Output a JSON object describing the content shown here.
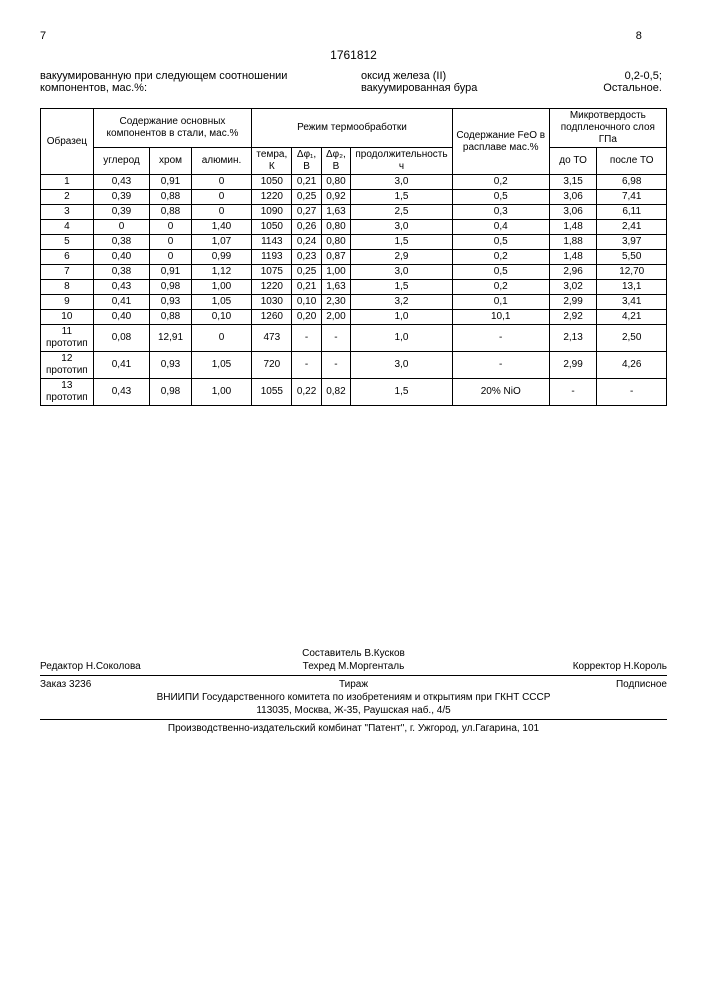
{
  "header": {
    "page_left": "7",
    "doc_number": "1761812",
    "page_right": "8",
    "left_text": "вакуумированную при следующем соотношении компонентов, мас.%:",
    "right_lines": [
      {
        "k": "оксид железа (II)",
        "v": "0,2-0,5;"
      },
      {
        "k": "вакуумированная бура",
        "v": "Остальное."
      }
    ]
  },
  "table": {
    "h_sample": "Образец",
    "h_components": "Содержание основных компонентов в стали, мас.%",
    "h_regime": "Режим термообработки",
    "h_feo": "Содержание FeO в расплаве мас.%",
    "h_hardness": "Микротвердость подпленочного слоя ГПа",
    "sub": {
      "c": "углерод",
      "cr": "хром",
      "al": "алюмин.",
      "temp": "темра, К",
      "d1": "Δφ₁, В",
      "d2": "Δφ₂, В",
      "dur": "продолжительность ч",
      "before": "до ТО",
      "after": "после ТО"
    },
    "rows": [
      {
        "n": "1",
        "c": "0,43",
        "cr": "0,91",
        "al": "0",
        "t": "1050",
        "d1": "0,21",
        "d2": "0,80",
        "dur": "3,0",
        "feo": "0,2",
        "b": "3,15",
        "a": "6,98"
      },
      {
        "n": "2",
        "c": "0,39",
        "cr": "0,88",
        "al": "0",
        "t": "1220",
        "d1": "0,25",
        "d2": "0,92",
        "dur": "1,5",
        "feo": "0,5",
        "b": "3,06",
        "a": "7,41"
      },
      {
        "n": "3",
        "c": "0,39",
        "cr": "0,88",
        "al": "0",
        "t": "1090",
        "d1": "0,27",
        "d2": "1,63",
        "dur": "2,5",
        "feo": "0,3",
        "b": "3,06",
        "a": "6,11"
      },
      {
        "n": "4",
        "c": "0",
        "cr": "0",
        "al": "1,40",
        "t": "1050",
        "d1": "0,26",
        "d2": "0,80",
        "dur": "3,0",
        "feo": "0,4",
        "b": "1,48",
        "a": "2,41"
      },
      {
        "n": "5",
        "c": "0,38",
        "cr": "0",
        "al": "1,07",
        "t": "1143",
        "d1": "0,24",
        "d2": "0,80",
        "dur": "1,5",
        "feo": "0,5",
        "b": "1,88",
        "a": "3,97"
      },
      {
        "n": "6",
        "c": "0,40",
        "cr": "0",
        "al": "0,99",
        "t": "1193",
        "d1": "0,23",
        "d2": "0,87",
        "dur": "2,9",
        "feo": "0,2",
        "b": "1,48",
        "a": "5,50"
      },
      {
        "n": "7",
        "c": "0,38",
        "cr": "0,91",
        "al": "1,12",
        "t": "1075",
        "d1": "0,25",
        "d2": "1,00",
        "dur": "3,0",
        "feo": "0,5",
        "b": "2,96",
        "a": "12,70"
      },
      {
        "n": "8",
        "c": "0,43",
        "cr": "0,98",
        "al": "1,00",
        "t": "1220",
        "d1": "0,21",
        "d2": "1,63",
        "dur": "1,5",
        "feo": "0,2",
        "b": "3,02",
        "a": "13,1"
      },
      {
        "n": "9",
        "c": "0,41",
        "cr": "0,93",
        "al": "1,05",
        "t": "1030",
        "d1": "0,10",
        "d2": "2,30",
        "dur": "3,2",
        "feo": "0,1",
        "b": "2,99",
        "a": "3,41"
      },
      {
        "n": "10",
        "c": "0,40",
        "cr": "0,88",
        "al": "0,10",
        "t": "1260",
        "d1": "0,20",
        "d2": "2,00",
        "dur": "1,0",
        "feo": "10,1",
        "b": "2,92",
        "a": "4,21"
      },
      {
        "n": "11 прототип",
        "c": "0,08",
        "cr": "12,91",
        "al": "0",
        "t": "473",
        "d1": "-",
        "d2": "-",
        "dur": "1,0",
        "feo": "-",
        "b": "2,13",
        "a": "2,50"
      },
      {
        "n": "12 прототип",
        "c": "0,41",
        "cr": "0,93",
        "al": "1,05",
        "t": "720",
        "d1": "-",
        "d2": "-",
        "dur": "3,0",
        "feo": "-",
        "b": "2,99",
        "a": "4,26"
      },
      {
        "n": "13 прототип",
        "c": "0,43",
        "cr": "0,98",
        "al": "1,00",
        "t": "1055",
        "d1": "0,22",
        "d2": "0,82",
        "dur": "1,5",
        "feo": "20% NiO",
        "b": "-",
        "a": "-"
      }
    ]
  },
  "footer": {
    "editor": "Редактор Н.Соколова",
    "compiler": "Составитель В.Кусков",
    "techred": "Техред М.Моргенталь",
    "corrector": "Корректор Н.Король",
    "order": "Заказ 3236",
    "tirazh": "Тираж",
    "subscribe": "Подписное",
    "org1": "ВНИИПИ Государственного комитета по изобретениям и открытиям при ГКНТ СССР",
    "org2": "113035, Москва, Ж-35, Раушская наб., 4/5",
    "org3": "Производственно-издательский комбинат \"Патент\", г. Ужгород, ул.Гагарина, 101"
  }
}
